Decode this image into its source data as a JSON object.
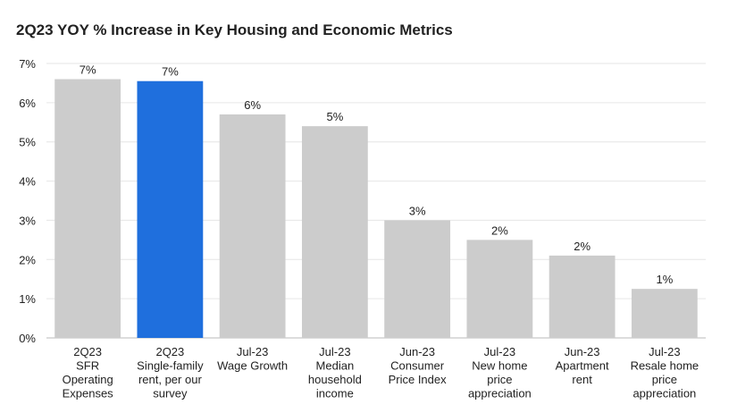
{
  "chart_data": {
    "type": "bar",
    "title": "2Q23 YOY % Increase in Key Housing and Economic Metrics",
    "categories": [
      [
        "2Q23",
        "SFR",
        "Operating",
        "Expenses"
      ],
      [
        "2Q23",
        "Single-family",
        "rent, per our",
        "survey"
      ],
      [
        "Jul-23",
        "Wage Growth"
      ],
      [
        "Jul-23",
        "Median",
        "household",
        "income"
      ],
      [
        "Jun-23",
        "Consumer",
        "Price Index"
      ],
      [
        "Jul-23",
        "New home",
        "price",
        "appreciation"
      ],
      [
        "Jun-23",
        "Apartment",
        "rent"
      ],
      [
        "Jul-23",
        "Resale home",
        "price",
        "appreciation"
      ]
    ],
    "values": [
      6.6,
      6.55,
      5.7,
      5.4,
      3.0,
      2.5,
      2.1,
      1.25
    ],
    "data_labels": [
      "7%",
      "7%",
      "6%",
      "5%",
      "3%",
      "2%",
      "2%",
      "1%"
    ],
    "highlight_index": 1,
    "y_ticks": [
      "0%",
      "1%",
      "2%",
      "3%",
      "4%",
      "5%",
      "6%",
      "7%"
    ],
    "ylim": [
      0,
      7
    ],
    "grid": true,
    "legend": "none",
    "colors": {
      "bar": "#cccccc",
      "highlight": "#1f6fdd",
      "grid": "#e6e6e6",
      "text": "#222222"
    }
  }
}
